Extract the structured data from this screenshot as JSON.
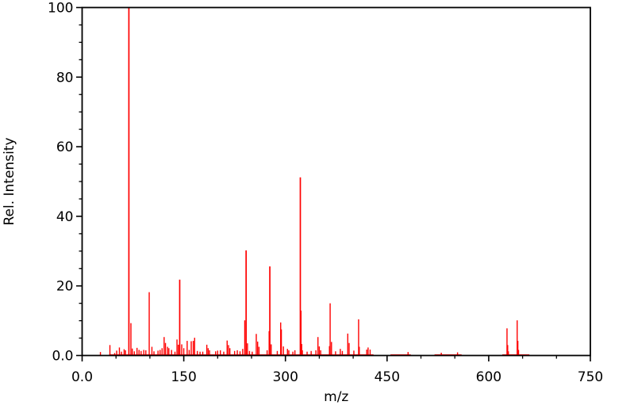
{
  "chart_data": {
    "type": "bar",
    "subtype": "mass-spectrum-stick-plot",
    "title": "",
    "xlabel": "m/z",
    "ylabel": "Rel. Intensity",
    "xlim": [
      0,
      750
    ],
    "ylim": [
      0,
      100
    ],
    "x_major_ticks": [
      0,
      150,
      300,
      450,
      600,
      750
    ],
    "x_major_tick_labels": [
      "0.0",
      "150",
      "300",
      "450",
      "600",
      "750"
    ],
    "x_minor_tick_step": 50,
    "y_major_ticks": [
      0,
      20,
      40,
      60,
      80,
      100
    ],
    "y_major_tick_labels": [
      "0.0",
      "20",
      "40",
      "60",
      "80",
      "100"
    ],
    "y_minor_tick_step": 5,
    "grid": false,
    "legend": false,
    "colors": {
      "peak": "#ff0000",
      "frame": "#000000",
      "background": "#ffffff",
      "text": "#000000"
    },
    "peaks": [
      [
        27,
        1.0
      ],
      [
        41,
        3.0
      ],
      [
        48,
        0.7
      ],
      [
        51,
        1.4
      ],
      [
        55,
        2.3
      ],
      [
        58,
        1.1
      ],
      [
        62,
        1.8
      ],
      [
        64,
        1.5
      ],
      [
        69,
        100.0
      ],
      [
        72,
        9.3
      ],
      [
        74,
        2.0
      ],
      [
        77,
        1.2
      ],
      [
        81,
        2.2
      ],
      [
        84,
        1.6
      ],
      [
        87,
        1.3
      ],
      [
        91,
        1.6
      ],
      [
        94,
        1.5
      ],
      [
        99,
        18.2
      ],
      [
        103,
        2.5
      ],
      [
        106,
        1.2
      ],
      [
        112,
        1.4
      ],
      [
        115,
        1.6
      ],
      [
        118,
        2.1
      ],
      [
        121,
        5.3
      ],
      [
        123,
        3.6
      ],
      [
        126,
        2.5
      ],
      [
        128,
        2.1
      ],
      [
        132,
        1.6
      ],
      [
        137,
        1.1
      ],
      [
        140,
        4.6
      ],
      [
        142,
        3.1
      ],
      [
        144,
        21.8
      ],
      [
        147,
        3.2
      ],
      [
        150,
        2.1
      ],
      [
        155,
        4.2
      ],
      [
        158,
        1.6
      ],
      [
        161,
        4.1
      ],
      [
        164,
        4.2
      ],
      [
        166,
        5.1
      ],
      [
        170,
        1.3
      ],
      [
        174,
        1.1
      ],
      [
        178,
        1.1
      ],
      [
        184,
        3.1
      ],
      [
        186,
        2.1
      ],
      [
        188,
        1.5
      ],
      [
        197,
        1.2
      ],
      [
        200,
        1.4
      ],
      [
        204,
        1.5
      ],
      [
        209,
        1.1
      ],
      [
        214,
        4.3
      ],
      [
        216,
        3.0
      ],
      [
        218,
        2.1
      ],
      [
        225,
        1.3
      ],
      [
        229,
        1.5
      ],
      [
        233,
        1.2
      ],
      [
        237,
        1.9
      ],
      [
        240,
        10.1
      ],
      [
        242,
        30.2
      ],
      [
        244,
        3.5
      ],
      [
        247,
        1.3
      ],
      [
        251,
        1.1
      ],
      [
        257,
        6.2
      ],
      [
        259,
        4.0
      ],
      [
        261,
        2.5
      ],
      [
        273,
        1.5
      ],
      [
        276,
        7.0
      ],
      [
        277,
        25.6
      ],
      [
        279,
        3.2
      ],
      [
        288,
        1.3
      ],
      [
        293,
        9.5
      ],
      [
        294,
        7.5
      ],
      [
        297,
        2.6
      ],
      [
        303,
        1.9
      ],
      [
        305,
        1.5
      ],
      [
        311,
        1.1
      ],
      [
        314,
        1.5
      ],
      [
        322,
        51.2
      ],
      [
        323,
        12.9
      ],
      [
        324,
        3.3
      ],
      [
        325,
        1.5
      ],
      [
        332,
        1.1
      ],
      [
        338,
        1.3
      ],
      [
        345,
        1.5
      ],
      [
        348,
        5.3
      ],
      [
        350,
        2.6
      ],
      [
        352,
        1.5
      ],
      [
        365,
        2.7
      ],
      [
        366,
        15.0
      ],
      [
        368,
        3.9
      ],
      [
        374,
        1.2
      ],
      [
        381,
        1.9
      ],
      [
        384,
        1.3
      ],
      [
        392,
        6.3
      ],
      [
        394,
        3.6
      ],
      [
        401,
        1.4
      ],
      [
        408,
        10.4
      ],
      [
        409,
        2.5
      ],
      [
        420,
        1.7
      ],
      [
        422,
        2.3
      ],
      [
        425,
        1.7
      ],
      [
        481,
        1.0
      ],
      [
        530,
        0.8
      ],
      [
        554,
        0.9
      ],
      [
        627,
        7.8
      ],
      [
        628,
        3.0
      ],
      [
        629,
        1.2
      ],
      [
        642,
        10.1
      ],
      [
        643,
        4.2
      ],
      [
        644,
        1.6
      ]
    ],
    "baseline_noise_segments": [
      [
        40,
        430
      ],
      [
        455,
        485
      ],
      [
        520,
        560
      ],
      [
        620,
        660
      ]
    ]
  }
}
